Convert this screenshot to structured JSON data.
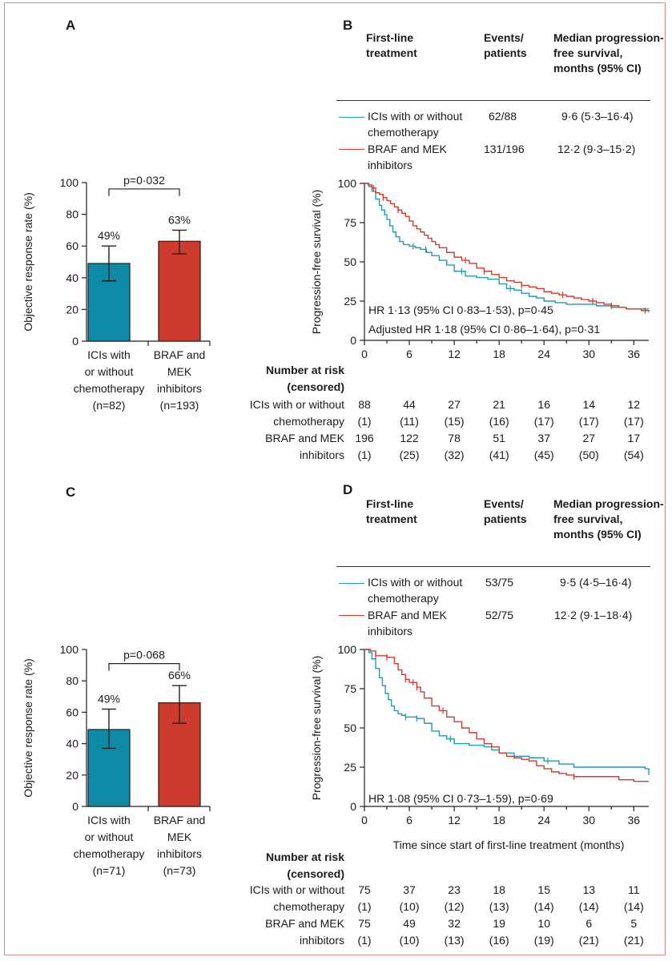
{
  "colors": {
    "teal": "#1f9bb3",
    "red": "#d23c2e",
    "bar_teal": "#0e8aa6",
    "bar_red": "#cd3a2e",
    "frame": "#d98a8a"
  },
  "labels": {
    "panel_a": "A",
    "panel_b": "B",
    "panel_c": "C",
    "panel_d": "D",
    "col_treatment": "First-line treatment",
    "col_events": "Events/ patients",
    "col_median": "Median progression-free survival, months (95% CI)",
    "ici_line1": "ICIs with or without",
    "ici_line2": "chemotherapy",
    "braf_line1": "BRAF and MEK",
    "braf_line2": "inhibitors",
    "risk_title1": "Number at risk",
    "risk_title2": "(censored)",
    "bar_ylabel": "Objective response rate (%)",
    "km_ylabel": "Progression-free survival (%)",
    "km_xlabel": "Time since start of first-line treatment (months)"
  },
  "chart_data": [
    {
      "panel": "A",
      "type": "bar",
      "ylabel": "Objective response rate (%)",
      "ylim": [
        0,
        100
      ],
      "yticks": [
        "0",
        "20",
        "40",
        "60",
        "80",
        "100"
      ],
      "categories": [
        "ICIs with or without chemotherapy",
        "BRAF and MEK inhibitors"
      ],
      "cat_lines": [
        [
          "ICIs with",
          "or without",
          "chemotherapy",
          "(n=82)"
        ],
        [
          "BRAF and",
          "MEK",
          "inhibitors",
          "(n=193)"
        ]
      ],
      "values": [
        49,
        63
      ],
      "ci_low": [
        38,
        55
      ],
      "ci_high": [
        60,
        70
      ],
      "value_labels": [
        "49%",
        "63%"
      ],
      "p_value": "p=0·032",
      "bracket_at": 96
    },
    {
      "panel": "B",
      "type": "line",
      "ylabel": "Progression-free survival (%)",
      "ylim": [
        0,
        100
      ],
      "xlim": [
        0,
        38
      ],
      "yticks": [
        "0",
        "25",
        "50",
        "75",
        "100"
      ],
      "xticks": [
        "0",
        "6",
        "12",
        "18",
        "24",
        "30",
        "36"
      ],
      "table": {
        "ici": {
          "events": "62/88",
          "median": "9·6 (5·3–16·4)"
        },
        "braf": {
          "events": "131/196",
          "median": "12·2 (9·3–15·2)"
        }
      },
      "annotations": [
        "HR 1·13 (95% CI 0·83–1·53), p=0·45",
        "Adjusted HR 1·18 (95% CI 0·86–1·64), p=0·31"
      ],
      "series": [
        {
          "name": "ICIs with or without chemotherapy",
          "color": "teal",
          "x": [
            0,
            0.6,
            1.0,
            1.5,
            2.0,
            2.3,
            2.7,
            3.0,
            3.4,
            3.8,
            4.2,
            4.7,
            5.2,
            6.0,
            6.8,
            7.5,
            8.3,
            9.0,
            10.0,
            11.0,
            12.0,
            13.5,
            15.0,
            16.5,
            18.0,
            19.0,
            20.0,
            21.0,
            22.0,
            23.0,
            24.0,
            25.5,
            27.0,
            29.0,
            31.0,
            33.0,
            35.0,
            38.0
          ],
          "y": [
            100,
            98,
            95,
            90,
            86,
            83,
            80,
            77,
            73,
            69,
            66,
            63,
            61,
            60,
            59,
            58,
            56,
            54,
            51,
            48,
            44,
            41,
            40,
            39,
            36,
            33,
            32,
            30,
            28,
            27,
            25,
            24,
            23,
            23,
            22,
            21,
            20,
            20
          ],
          "censor_x": [
            6.5,
            8.2,
            13.0,
            19.5
          ]
        },
        {
          "name": "BRAF and MEK inhibitors",
          "color": "red",
          "x": [
            0,
            0.5,
            1.0,
            1.5,
            2.0,
            2.5,
            3.0,
            3.5,
            4.0,
            4.5,
            5.0,
            5.5,
            6.0,
            6.5,
            7.0,
            7.5,
            8.0,
            8.5,
            9.0,
            9.5,
            10.0,
            11.0,
            12.0,
            13.0,
            14.0,
            15.0,
            16.0,
            17.0,
            18.0,
            19.0,
            20.0,
            21.0,
            22.0,
            23.0,
            24.0,
            25.0,
            26.0,
            27.0,
            28.0,
            29.0,
            30.0,
            31.0,
            32.0,
            33.0,
            34.0,
            35.0,
            36.0,
            37.0,
            38.0
          ],
          "y": [
            100,
            99,
            97,
            94,
            93,
            91,
            89,
            87,
            85,
            83,
            81,
            79,
            76,
            73,
            71,
            69,
            67,
            65,
            63,
            61,
            59,
            56,
            53,
            51,
            49,
            46,
            44,
            42,
            40,
            38,
            37,
            35,
            34,
            33,
            31,
            30,
            29,
            28,
            27,
            26,
            25,
            24,
            23,
            22,
            21,
            20,
            20,
            19,
            18
          ],
          "censor_x": [
            1.2,
            2.5,
            4.5,
            13.5,
            16.0,
            21.0,
            26.5,
            30.5,
            33.0,
            37.5
          ]
        }
      ],
      "risk": {
        "ici_counts": [
          "88",
          "44",
          "27",
          "21",
          "16",
          "14",
          "12"
        ],
        "ici_censored": [
          "(1)",
          "(11)",
          "(15)",
          "(16)",
          "(17)",
          "(17)",
          "(17)"
        ],
        "braf_counts": [
          "196",
          "122",
          "78",
          "51",
          "37",
          "27",
          "17"
        ],
        "braf_censored": [
          "(1)",
          "(25)",
          "(32)",
          "(41)",
          "(45)",
          "(50)",
          "(54)"
        ]
      }
    },
    {
      "panel": "C",
      "type": "bar",
      "ylabel": "Objective response rate (%)",
      "ylim": [
        0,
        100
      ],
      "yticks": [
        "0",
        "20",
        "40",
        "60",
        "80",
        "100"
      ],
      "categories": [
        "ICIs with or without chemotherapy",
        "BRAF and MEK inhibitors"
      ],
      "cat_lines": [
        [
          "ICIs with",
          "or without",
          "chemotherapy",
          "(n=71)"
        ],
        [
          "BRAF and",
          "MEK",
          "inhibitors",
          "(n=73)"
        ]
      ],
      "values": [
        49,
        66
      ],
      "ci_low": [
        37,
        53
      ],
      "ci_high": [
        62,
        77
      ],
      "value_labels": [
        "49%",
        "66%"
      ],
      "p_value": "p=0·068",
      "bracket_at": 91
    },
    {
      "panel": "D",
      "type": "line",
      "ylabel": "Progression-free survival (%)",
      "ylim": [
        0,
        100
      ],
      "xlim": [
        0,
        38
      ],
      "yticks": [
        "0",
        "25",
        "50",
        "75",
        "100"
      ],
      "xticks": [
        "0",
        "6",
        "12",
        "18",
        "24",
        "30",
        "36"
      ],
      "xlabel": "Time since start of first-line treatment (months)",
      "table": {
        "ici": {
          "events": "53/75",
          "median": "9·5 (4·5–16·4)"
        },
        "braf": {
          "events": "52/75",
          "median": "12·2 (9·1–18·4)"
        }
      },
      "annotations": [
        "HR 1·08 (95% CI 0·73–1·59), p=0·69"
      ],
      "series": [
        {
          "name": "ICIs with or without chemotherapy",
          "color": "teal",
          "x": [
            0,
            0.6,
            1.0,
            1.5,
            2.0,
            2.4,
            2.8,
            3.2,
            3.6,
            4.0,
            4.5,
            5.0,
            5.5,
            6.0,
            7.0,
            8.0,
            9.0,
            10.0,
            11.0,
            12.0,
            14.0,
            16.0,
            17.0,
            18.0,
            20.0,
            22.0,
            24.0,
            26.0,
            28.0,
            30.0,
            32.0,
            34.0,
            36.0,
            37.5,
            38.0
          ],
          "y": [
            100,
            98,
            94,
            88,
            82,
            77,
            72,
            68,
            64,
            61,
            59,
            58,
            57,
            57,
            56,
            53,
            48,
            45,
            43,
            40,
            39,
            38,
            36,
            34,
            32,
            31,
            29,
            27,
            25,
            25,
            25,
            25,
            25,
            24,
            20
          ],
          "censor_x": [
            5.5,
            7.0,
            11.5,
            24.5
          ]
        },
        {
          "name": "BRAF and MEK inhibitors",
          "color": "red",
          "x": [
            0,
            0.8,
            1.5,
            2.0,
            3.0,
            4.0,
            4.5,
            5.0,
            5.5,
            6.0,
            7.0,
            7.5,
            8.0,
            9.0,
            10.0,
            11.0,
            12.0,
            13.0,
            14.0,
            15.0,
            16.0,
            17.0,
            18.0,
            19.0,
            20.0,
            21.0,
            22.0,
            23.0,
            24.0,
            25.0,
            26.0,
            27.0,
            28.0,
            30.0,
            32.0,
            34.0,
            36.0,
            38.0
          ],
          "y": [
            100,
            99,
            96,
            96,
            95,
            91,
            87,
            84,
            81,
            79,
            76,
            73,
            69,
            64,
            61,
            57,
            54,
            50,
            47,
            43,
            40,
            38,
            34,
            32,
            31,
            30,
            29,
            26,
            24,
            22,
            21,
            20,
            19,
            19,
            19,
            17,
            16,
            16
          ],
          "censor_x": [
            1.5,
            3.0,
            5.5,
            6.5,
            7.0,
            10.5,
            28.0
          ]
        }
      ],
      "risk": {
        "ici_counts": [
          "75",
          "37",
          "23",
          "18",
          "15",
          "13",
          "11"
        ],
        "ici_censored": [
          "(1)",
          "(10)",
          "(12)",
          "(13)",
          "(14)",
          "(14)",
          "(14)"
        ],
        "braf_counts": [
          "75",
          "49",
          "32",
          "19",
          "10",
          "6",
          "5"
        ],
        "braf_censored": [
          "(1)",
          "(10)",
          "(13)",
          "(16)",
          "(19)",
          "(21)",
          "(21)"
        ]
      }
    }
  ]
}
